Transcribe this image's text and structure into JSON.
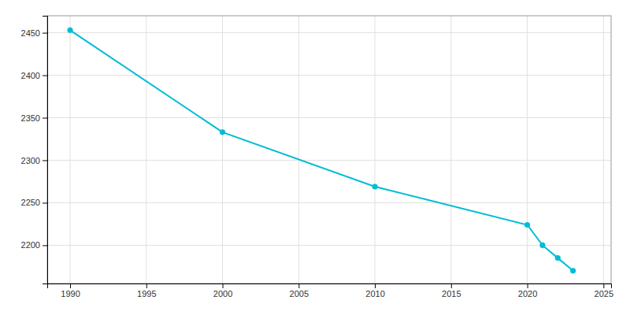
{
  "chart_data": {
    "type": "line",
    "x": [
      1990,
      2000,
      2010,
      2020,
      2021,
      2022,
      2023
    ],
    "values": [
      2453,
      2333,
      2269,
      2224,
      2200,
      2185,
      2170
    ],
    "color": "#00BCD4",
    "marker": "circle",
    "xlim": [
      1988.5,
      2025.5
    ],
    "ylim": [
      2155,
      2470
    ],
    "xticks": [
      1990,
      1995,
      2000,
      2005,
      2010,
      2015,
      2020,
      2025
    ],
    "yticks": [
      2200,
      2250,
      2300,
      2350,
      2400,
      2450
    ],
    "grid": true
  }
}
